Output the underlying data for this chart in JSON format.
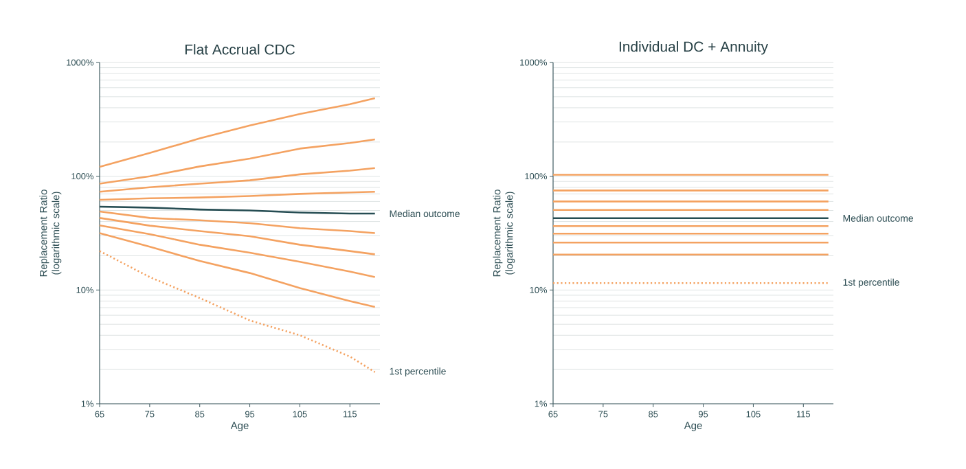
{
  "chart_data": [
    {
      "type": "line",
      "title": "Flat Accrual CDC",
      "xlabel": "Age",
      "ylabel": "Replacement Ratio (logarithmic scale)",
      "x": [
        65,
        75,
        85,
        95,
        105,
        115,
        120
      ],
      "xlim": [
        65,
        121
      ],
      "xticks": [
        65,
        75,
        85,
        95,
        105,
        115
      ],
      "ylim": [
        1,
        1000
      ],
      "yticks": [
        {
          "value": 1,
          "label": "1%"
        },
        {
          "value": 10,
          "label": "10%"
        },
        {
          "value": 100,
          "label": "100%"
        },
        {
          "value": 1000,
          "label": "1000%"
        }
      ],
      "log": "y",
      "grid": "y",
      "series": [
        {
          "color": "#f4a261",
          "line_style": "solid",
          "values": [
            121,
            160,
            215,
            279,
            353,
            430,
            486
          ]
        },
        {
          "color": "#f4a261",
          "line_style": "solid",
          "values": [
            86,
            100,
            122,
            143,
            175,
            196,
            211
          ]
        },
        {
          "color": "#f4a261",
          "line_style": "solid",
          "values": [
            73,
            80,
            86,
            92,
            104,
            112,
            118
          ]
        },
        {
          "color": "#f4a261",
          "line_style": "solid",
          "values": [
            62,
            64,
            65,
            67,
            70,
            72,
            73
          ]
        },
        {
          "color": "#264d53",
          "line_style": "solid",
          "values": [
            54,
            53,
            51,
            50,
            48,
            47,
            47
          ]
        },
        {
          "color": "#f4a261",
          "line_style": "solid",
          "values": [
            49,
            43,
            41,
            38.7,
            35,
            33,
            31.6
          ]
        },
        {
          "color": "#f4a261",
          "line_style": "solid",
          "values": [
            43,
            36.8,
            33,
            29.7,
            25,
            22,
            20.6
          ]
        },
        {
          "color": "#f4a261",
          "line_style": "solid",
          "values": [
            37,
            31,
            25,
            21.3,
            17.7,
            14.5,
            13
          ]
        },
        {
          "color": "#f4a261",
          "line_style": "solid",
          "values": [
            31.6,
            24,
            18,
            14.1,
            10.4,
            8,
            7.1
          ]
        },
        {
          "color": "#f4a261",
          "line_style": "dotted",
          "values": [
            22,
            13,
            8.5,
            5.4,
            4.0,
            2.6,
            1.9
          ]
        }
      ],
      "annotations": [
        "Median outcome",
        "1st percentile"
      ]
    },
    {
      "type": "line",
      "title": "Individual DC + Annuity",
      "xlabel": "Age",
      "ylabel": "Replacement Ratio (logarithmic scale)",
      "x": [
        65,
        120
      ],
      "xlim": [
        65,
        121
      ],
      "xticks": [
        65,
        75,
        85,
        95,
        105,
        115
      ],
      "ylim": [
        1,
        1000
      ],
      "yticks": [
        {
          "value": 1,
          "label": "1%"
        },
        {
          "value": 10,
          "label": "10%"
        },
        {
          "value": 100,
          "label": "100%"
        },
        {
          "value": 1000,
          "label": "1000%"
        }
      ],
      "log": "y",
      "grid": "y",
      "series": [
        {
          "color": "#f4a261",
          "line_style": "solid",
          "values": [
            103,
            103
          ]
        },
        {
          "color": "#f4a261",
          "line_style": "solid",
          "values": [
            75,
            75
          ]
        },
        {
          "color": "#f4a261",
          "line_style": "solid",
          "values": [
            60,
            60
          ]
        },
        {
          "color": "#f4a261",
          "line_style": "solid",
          "values": [
            50.6,
            50.6
          ]
        },
        {
          "color": "#264d53",
          "line_style": "solid",
          "values": [
            42.8,
            42.8
          ]
        },
        {
          "color": "#f4a261",
          "line_style": "solid",
          "values": [
            36.5,
            36.5
          ]
        },
        {
          "color": "#f4a261",
          "line_style": "solid",
          "values": [
            31.3,
            31.3
          ]
        },
        {
          "color": "#f4a261",
          "line_style": "solid",
          "values": [
            26.1,
            26.1
          ]
        },
        {
          "color": "#f4a261",
          "line_style": "solid",
          "values": [
            20.5,
            20.5
          ]
        },
        {
          "color": "#f4a261",
          "line_style": "dotted",
          "values": [
            11.5,
            11.5
          ]
        }
      ],
      "annotations": [
        "Median outcome",
        "1st percentile"
      ]
    }
  ]
}
